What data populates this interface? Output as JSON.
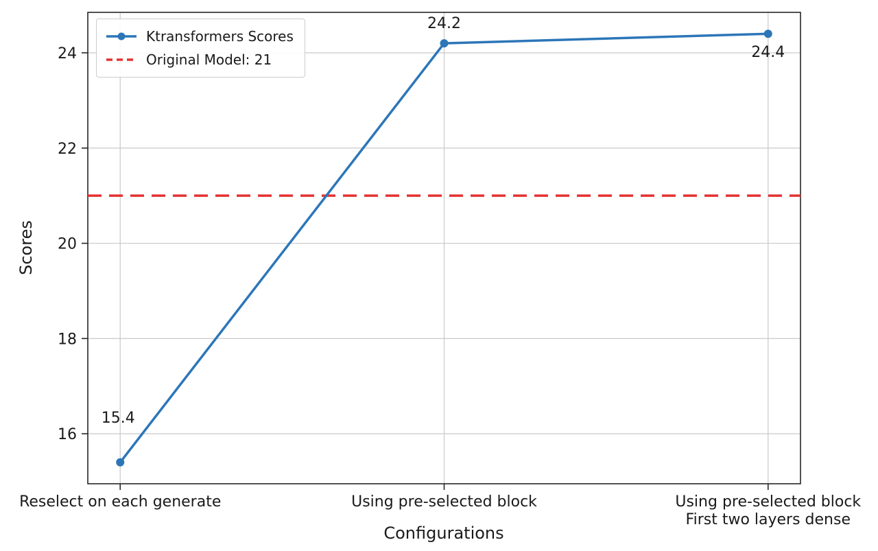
{
  "chart_data": {
    "type": "line",
    "title": "",
    "xlabel": "Configurations",
    "ylabel": "Scores",
    "categories": [
      "Reselect on each generate",
      "Using pre-selected block",
      "Using pre-selected block\nFirst two layers dense"
    ],
    "series": [
      {
        "name": "Ktransformers Scores",
        "values": [
          15.4,
          24.2,
          24.4
        ],
        "color": "#2c76b8",
        "marker": "circle"
      }
    ],
    "point_labels": [
      "15.4",
      "24.2",
      "24.4"
    ],
    "reference_line": {
      "label": "Original Model: 21",
      "value": 21,
      "color": "#e53030",
      "style": "dashed"
    },
    "yticks": [
      16,
      18,
      20,
      22,
      24
    ],
    "ylim": [
      14.95,
      24.85
    ],
    "xlim": [
      -0.1,
      2.1
    ],
    "grid": true,
    "legend_position": "upper-left"
  },
  "colors": {
    "grid": "#c9c9c9",
    "spine": "#262626",
    "text": "#1a1a1a",
    "background": "#ffffff"
  }
}
